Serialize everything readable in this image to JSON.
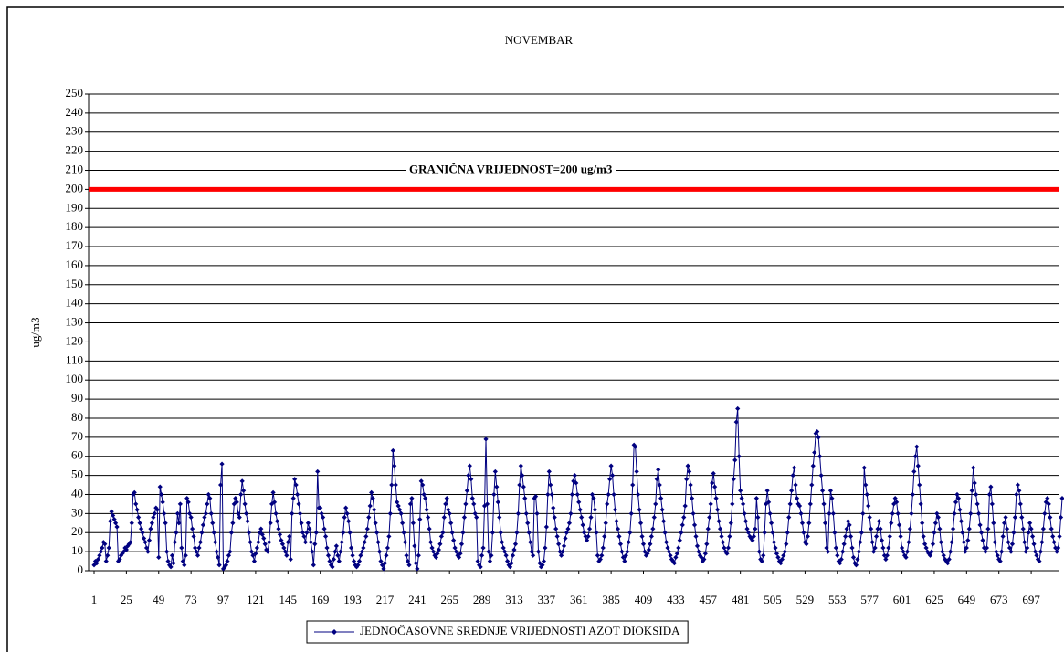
{
  "chart_data": {
    "type": "line",
    "title": "NOVEMBAR",
    "y_label": "ug/m3",
    "ylim": [
      0,
      250
    ],
    "yticks": [
      0,
      10,
      20,
      30,
      40,
      50,
      60,
      70,
      80,
      90,
      100,
      110,
      120,
      130,
      140,
      150,
      160,
      170,
      180,
      190,
      200,
      210,
      220,
      230,
      240,
      250
    ],
    "xlim": [
      1,
      720
    ],
    "xticks": [
      1,
      25,
      49,
      73,
      97,
      121,
      145,
      169,
      193,
      217,
      241,
      265,
      289,
      313,
      337,
      361,
      385,
      409,
      433,
      457,
      481,
      505,
      529,
      553,
      577,
      601,
      625,
      649,
      673,
      697
    ],
    "grid": true,
    "legend": "bottom",
    "threshold": {
      "value": 200,
      "label": "GRANIČNA VRIJEDNOST=200 ug/m3",
      "color": "#ff0000"
    },
    "series": [
      {
        "name": "JEDNOČASOVNE SREDNJE VRIJEDNOSTI AZOT DIOKSIDA",
        "color": "#000080",
        "values": [
          3,
          5,
          4,
          6,
          8,
          10,
          12,
          15,
          14,
          5,
          8,
          12,
          26,
          31,
          29,
          27,
          25,
          23,
          5,
          6,
          8,
          9,
          10,
          12,
          11,
          13,
          14,
          15,
          25,
          40,
          41,
          35,
          32,
          28,
          25,
          22,
          20,
          17,
          15,
          12,
          10,
          16,
          22,
          25,
          28,
          30,
          33,
          32,
          7,
          44,
          40,
          36,
          30,
          25,
          10,
          5,
          3,
          2,
          8,
          4,
          15,
          20,
          30,
          25,
          35,
          12,
          5,
          3,
          8,
          38,
          36,
          30,
          28,
          22,
          18,
          12,
          10,
          8,
          12,
          15,
          20,
          24,
          28,
          30,
          35,
          40,
          38,
          30,
          25,
          20,
          15,
          10,
          7,
          3,
          45,
          56,
          1,
          2,
          3,
          5,
          8,
          10,
          20,
          25,
          35,
          38,
          36,
          30,
          28,
          40,
          47,
          42,
          35,
          30,
          26,
          20,
          15,
          10,
          8,
          5,
          9,
          12,
          15,
          20,
          22,
          19,
          17,
          14,
          11,
          10,
          15,
          25,
          35,
          41,
          36,
          30,
          26,
          22,
          19,
          16,
          14,
          12,
          10,
          8,
          15,
          18,
          6,
          30,
          38,
          48,
          45,
          40,
          35,
          30,
          25,
          20,
          18,
          15,
          20,
          25,
          22,
          15,
          10,
          3,
          14,
          20,
          52,
          33,
          33,
          30,
          28,
          22,
          18,
          12,
          8,
          5,
          3,
          2,
          6,
          10,
          13,
          8,
          5,
          10,
          15,
          20,
          28,
          33,
          30,
          26,
          20,
          12,
          8,
          5,
          3,
          2,
          3,
          5,
          8,
          10,
          12,
          15,
          18,
          22,
          28,
          34,
          41,
          38,
          32,
          25,
          20,
          15,
          10,
          5,
          3,
          1,
          4,
          8,
          12,
          18,
          30,
          45,
          63,
          55,
          45,
          36,
          34,
          32,
          30,
          25,
          20,
          15,
          8,
          5,
          3,
          35,
          38,
          25,
          13,
          4,
          1,
          8,
          27,
          47,
          45,
          40,
          38,
          32,
          28,
          22,
          15,
          12,
          10,
          8,
          7,
          9,
          11,
          14,
          18,
          20,
          28,
          35,
          38,
          32,
          30,
          25,
          20,
          16,
          12,
          10,
          8,
          7,
          9,
          14,
          20,
          28,
          35,
          42,
          50,
          55,
          48,
          38,
          35,
          30,
          28,
          5,
          3,
          2,
          8,
          12,
          34,
          69,
          35,
          10,
          5,
          8,
          20,
          40,
          52,
          44,
          36,
          28,
          20,
          15,
          12,
          10,
          8,
          5,
          3,
          2,
          4,
          8,
          11,
          14,
          20,
          30,
          45,
          55,
          50,
          44,
          38,
          30,
          25,
          20,
          15,
          10,
          8,
          38,
          39,
          30,
          10,
          4,
          2,
          3,
          5,
          12,
          23,
          40,
          52,
          45,
          40,
          33,
          28,
          22,
          18,
          14,
          10,
          8,
          10,
          13,
          17,
          20,
          22,
          25,
          30,
          40,
          47,
          50,
          46,
          40,
          36,
          32,
          28,
          24,
          20,
          18,
          16,
          18,
          22,
          28,
          40,
          38,
          32,
          20,
          8,
          5,
          6,
          8,
          12,
          18,
          25,
          35,
          40,
          48,
          55,
          50,
          40,
          32,
          26,
          22,
          18,
          14,
          10,
          7,
          5,
          8,
          10,
          15,
          20,
          30,
          45,
          66,
          65,
          52,
          40,
          32,
          25,
          18,
          14,
          10,
          8,
          9,
          11,
          14,
          18,
          22,
          28,
          35,
          48,
          53,
          45,
          38,
          32,
          26,
          20,
          15,
          12,
          10,
          8,
          6,
          5,
          4,
          7,
          9,
          12,
          16,
          20,
          24,
          28,
          34,
          48,
          55,
          52,
          45,
          38,
          30,
          24,
          18,
          13,
          10,
          8,
          7,
          5,
          6,
          9,
          14,
          22,
          28,
          35,
          46,
          51,
          44,
          38,
          32,
          26,
          22,
          18,
          15,
          12,
          10,
          9,
          12,
          18,
          25,
          35,
          48,
          58,
          78,
          85,
          60,
          42,
          38,
          35,
          30,
          26,
          22,
          20,
          18,
          17,
          16,
          18,
          22,
          38,
          28,
          10,
          6,
          5,
          8,
          20,
          35,
          42,
          36,
          30,
          25,
          20,
          15,
          12,
          9,
          7,
          5,
          4,
          6,
          8,
          10,
          14,
          20,
          28,
          35,
          42,
          50,
          54,
          45,
          38,
          35,
          34,
          30,
          25,
          20,
          15,
          14,
          18,
          25,
          35,
          45,
          55,
          62,
          72,
          73,
          70,
          60,
          50,
          42,
          35,
          25,
          12,
          10,
          30,
          42,
          38,
          30,
          20,
          12,
          8,
          5,
          4,
          6,
          10,
          14,
          18,
          22,
          26,
          24,
          18,
          12,
          7,
          4,
          3,
          6,
          10,
          15,
          20,
          30,
          54,
          45,
          40,
          34,
          28,
          22,
          15,
          10,
          12,
          18,
          22,
          26,
          22,
          16,
          12,
          8,
          6,
          8,
          12,
          18,
          25,
          30,
          35,
          38,
          36,
          30,
          24,
          18,
          12,
          10,
          8,
          7,
          10,
          15,
          22,
          30,
          40,
          52,
          60,
          65,
          55,
          45,
          35,
          25,
          18,
          14,
          12,
          10,
          9,
          8,
          10,
          14,
          20,
          25,
          30,
          28,
          22,
          15,
          10,
          8,
          6,
          5,
          4,
          6,
          10,
          15,
          22,
          30,
          36,
          40,
          38,
          32,
          26,
          20,
          15,
          10,
          12,
          16,
          22,
          30,
          42,
          54,
          46,
          40,
          35,
          30,
          24,
          20,
          16,
          12,
          10,
          12,
          22,
          40,
          44,
          35,
          25,
          15,
          10,
          8,
          6,
          5,
          10,
          18,
          25,
          28,
          22,
          15,
          12,
          10,
          14,
          20,
          28,
          40,
          45,
          42,
          35,
          28,
          22,
          15,
          10,
          12,
          20,
          25,
          22,
          18,
          14,
          10,
          8,
          6,
          5,
          10,
          15,
          22,
          30,
          36,
          38,
          35,
          28,
          22,
          18,
          15,
          12,
          10,
          12,
          18,
          28,
          38
        ]
      }
    ]
  }
}
